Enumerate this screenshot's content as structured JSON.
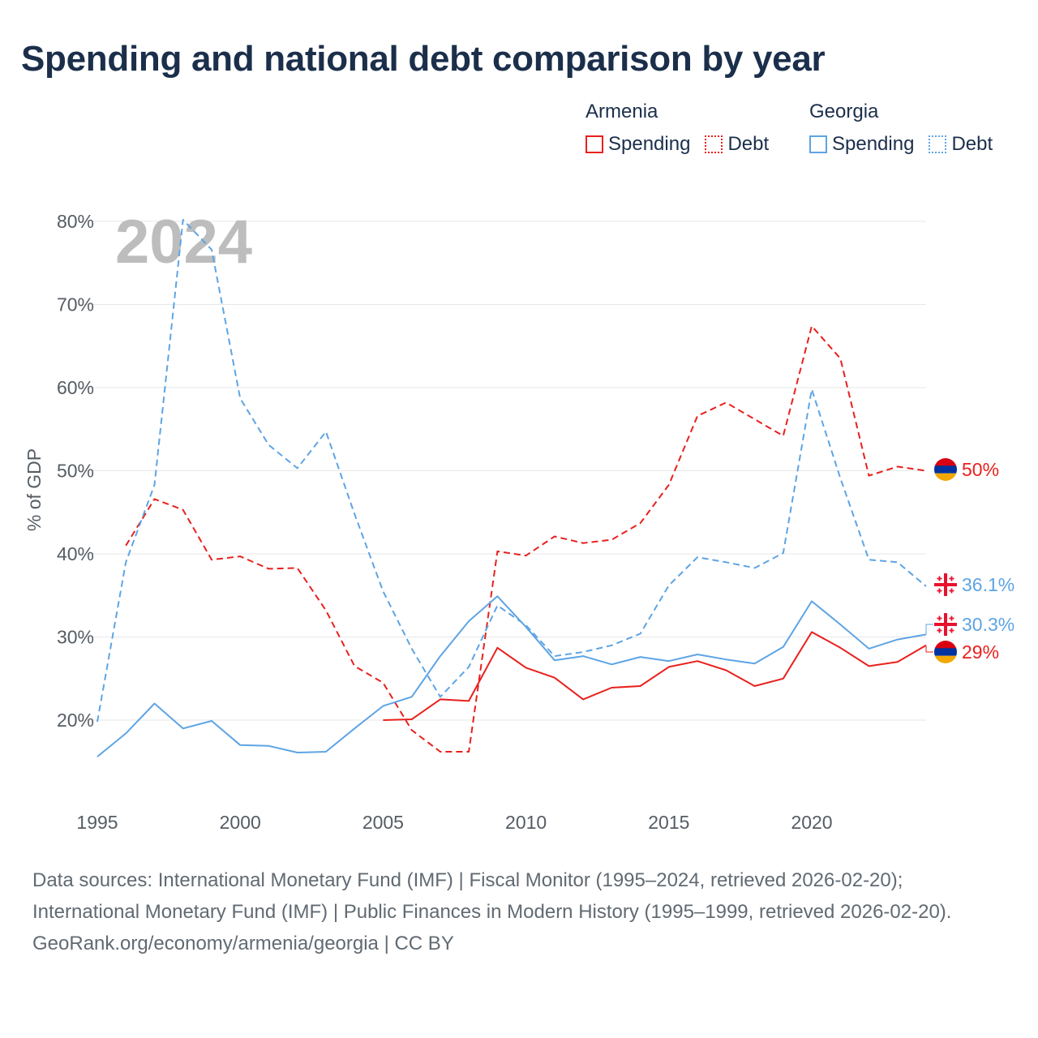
{
  "title": "Spending and national debt comparison by year",
  "legend": {
    "armenia": {
      "country": "Armenia",
      "spending": "Spending",
      "debt": "Debt"
    },
    "georgia": {
      "country": "Georgia",
      "spending": "Spending",
      "debt": "Debt"
    }
  },
  "colors": {
    "armenia": "#e8201d",
    "georgia": "#5ea4e4",
    "title": "#1b2f4b",
    "axis": "#555c63",
    "grid": "#e7e7e7",
    "year": "#bdbdbd"
  },
  "year_overlay": "2024",
  "footer": {
    "sources": "Data sources: International Monetary Fund (IMF) | Fiscal Monitor (1995–2024, retrieved 2026-02-20); International Monetary Fund (IMF) | Public Finances in Modern History (1995–1999, retrieved 2026-02-20).",
    "credit": "GeoRank.org/economy/armenia/georgia | CC BY"
  },
  "chart_data": {
    "type": "line",
    "title": "Spending and national debt comparison by year",
    "ylabel": "% of GDP",
    "xlabel": "",
    "xlim": [
      1995,
      2024
    ],
    "ylim": [
      12,
      82
    ],
    "yticks": [
      20,
      30,
      40,
      50,
      60,
      70,
      80
    ],
    "ytick_labels": [
      "20%",
      "30%",
      "40%",
      "50%",
      "60%",
      "70%",
      "80%"
    ],
    "xticks": [
      1995,
      2000,
      2005,
      2010,
      2015,
      2020
    ],
    "xtick_labels": [
      "1995",
      "2000",
      "2005",
      "2010",
      "2015",
      "2020"
    ],
    "grid": true,
    "series": [
      {
        "name": "Armenia Debt",
        "country": "armenia",
        "style": "dashed",
        "x": [
          1996,
          1997,
          1998,
          1999,
          2000,
          2001,
          2002,
          2003,
          2004,
          2005,
          2006,
          2007,
          2008,
          2009,
          2010,
          2011,
          2012,
          2013,
          2014,
          2015,
          2016,
          2017,
          2018,
          2019,
          2020,
          2021,
          2022,
          2023,
          2024
        ],
        "values": [
          41,
          46.6,
          45.3,
          39.3,
          39.7,
          38.2,
          38.3,
          33.2,
          26.5,
          24.5,
          18.8,
          16.2,
          16.2,
          40.3,
          39.8,
          42.1,
          41.3,
          41.7,
          43.7,
          48.3,
          56.6,
          58.2,
          56.2,
          54.2,
          67.4,
          63.5,
          49.4,
          50.5,
          50.0
        ],
        "end_label": "50%"
      },
      {
        "name": "Georgia Debt",
        "country": "georgia",
        "style": "dashed",
        "x": [
          1995,
          1996,
          1997,
          1998,
          1999,
          2000,
          2001,
          2002,
          2003,
          2004,
          2005,
          2006,
          2007,
          2008,
          2009,
          2010,
          2011,
          2012,
          2013,
          2014,
          2015,
          2016,
          2017,
          2018,
          2019,
          2020,
          2021,
          2022,
          2023,
          2024
        ],
        "values": [
          19.8,
          39,
          48.3,
          80.2,
          76.6,
          58.7,
          53.1,
          50.3,
          54.7,
          44.8,
          35.5,
          28.6,
          22.8,
          26.4,
          33.8,
          31.4,
          27.7,
          28.2,
          29,
          30.4,
          36.2,
          39.6,
          39,
          38.3,
          40.1,
          59.8,
          49.1,
          39.3,
          39,
          36.1
        ],
        "end_label": "36.1%"
      },
      {
        "name": "Georgia Spending",
        "country": "georgia",
        "style": "solid",
        "x": [
          1995,
          1996,
          1997,
          1998,
          1999,
          2000,
          2001,
          2002,
          2003,
          2004,
          2005,
          2006,
          2007,
          2008,
          2009,
          2010,
          2011,
          2012,
          2013,
          2014,
          2015,
          2016,
          2017,
          2018,
          2019,
          2020,
          2021,
          2022,
          2023,
          2024
        ],
        "values": [
          15.6,
          18.4,
          22,
          19,
          19.9,
          17,
          16.9,
          16.1,
          16.2,
          19,
          21.7,
          22.8,
          27.7,
          31.9,
          34.9,
          31.2,
          27.2,
          27.7,
          26.7,
          27.6,
          27.1,
          27.9,
          27.3,
          26.8,
          28.8,
          34.3,
          31.5,
          28.6,
          29.7,
          30.3
        ],
        "end_label": "30.3%"
      },
      {
        "name": "Armenia Spending",
        "country": "armenia",
        "style": "solid",
        "x": [
          2005,
          2006,
          2007,
          2008,
          2009,
          2010,
          2011,
          2012,
          2013,
          2014,
          2015,
          2016,
          2017,
          2018,
          2019,
          2020,
          2021,
          2022,
          2023,
          2024
        ],
        "values": [
          20,
          20.1,
          22.5,
          22.3,
          28.7,
          26.3,
          25.1,
          22.5,
          23.9,
          24.1,
          26.4,
          27.1,
          26,
          24.1,
          25,
          30.6,
          28.7,
          26.5,
          27,
          29
        ],
        "end_label": "29%"
      }
    ]
  }
}
